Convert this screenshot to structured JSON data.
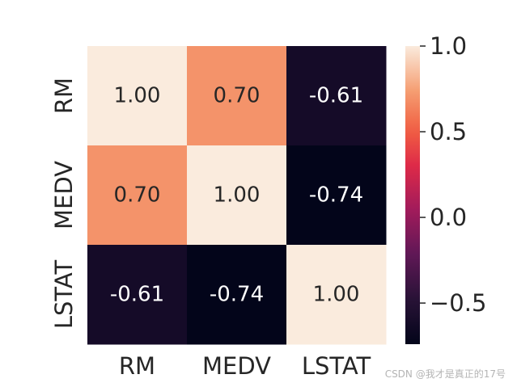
{
  "chart_data": {
    "type": "heatmap",
    "title": "",
    "xlabel": "",
    "ylabel": "",
    "x_labels": [
      "RM",
      "MEDV",
      "LSTAT"
    ],
    "y_labels": [
      "RM",
      "MEDV",
      "LSTAT"
    ],
    "values": [
      [
        1.0,
        0.7,
        -0.61
      ],
      [
        0.7,
        1.0,
        -0.74
      ],
      [
        -0.61,
        -0.74,
        1.0
      ]
    ],
    "annotations": [
      [
        "1.00",
        "0.70",
        "-0.61"
      ],
      [
        "0.70",
        "1.00",
        "-0.74"
      ],
      [
        "-0.61",
        "-0.74",
        "1.00"
      ]
    ],
    "colormap": "rocket",
    "colorbar": {
      "vmin": -0.74,
      "vmax": 1.0,
      "ticks": [
        1.0,
        0.5,
        0.0,
        -0.5
      ],
      "tick_labels": [
        "1.0",
        "0.5",
        "0.0",
        "−0.5"
      ]
    }
  },
  "watermark": "CSDN @我才是真正的17号"
}
